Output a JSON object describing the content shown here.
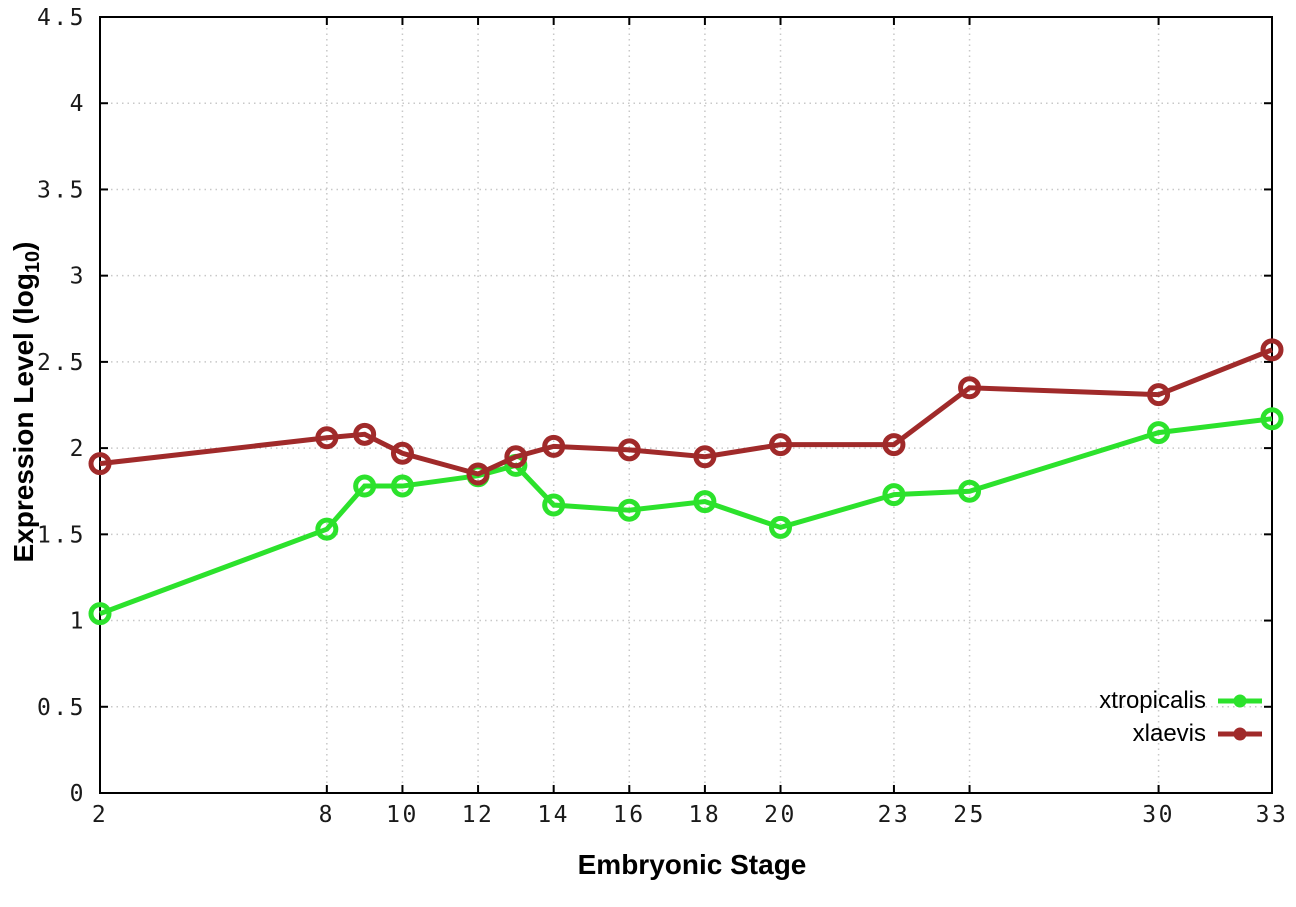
{
  "chart_data": {
    "type": "line",
    "xlabel": "Embryonic Stage",
    "ylabel": {
      "main": "Expression Level (log",
      "sub": "10",
      "end": ")"
    },
    "xlim": [
      2,
      33
    ],
    "ylim": [
      0,
      4.5
    ],
    "x_ticks": [
      2,
      8,
      10,
      12,
      14,
      16,
      18,
      20,
      23,
      25,
      30,
      33
    ],
    "y_ticks": [
      0,
      0.5,
      1,
      1.5,
      2,
      2.5,
      3,
      3.5,
      4,
      4.5
    ],
    "y_tick_labels": [
      "0",
      "0.5",
      "1",
      "1.5",
      "2",
      "2.5",
      "3",
      "3.5",
      "4",
      "4.5"
    ],
    "grid": true,
    "legend_position": "bottom-right",
    "marker": "open-circle",
    "x": [
      2,
      8,
      9,
      10,
      12,
      13,
      14,
      16,
      18,
      20,
      23,
      25,
      30,
      33
    ],
    "series": [
      {
        "name": "xtropicalis",
        "color": "#2ce22c",
        "values": [
          1.04,
          1.53,
          1.78,
          1.78,
          1.84,
          1.9,
          1.67,
          1.64,
          1.69,
          1.54,
          1.73,
          1.75,
          2.09,
          2.17
        ]
      },
      {
        "name": "xlaevis",
        "color": "#a02a2a",
        "values": [
          1.91,
          2.06,
          2.08,
          1.97,
          1.85,
          1.95,
          2.01,
          1.99,
          1.95,
          2.02,
          2.02,
          2.35,
          2.31,
          2.57
        ]
      }
    ],
    "colors": {
      "background": "#ffffff",
      "border": "#000000",
      "grid": "#c8c8c8",
      "tick_text": "#1a1a1a"
    }
  }
}
